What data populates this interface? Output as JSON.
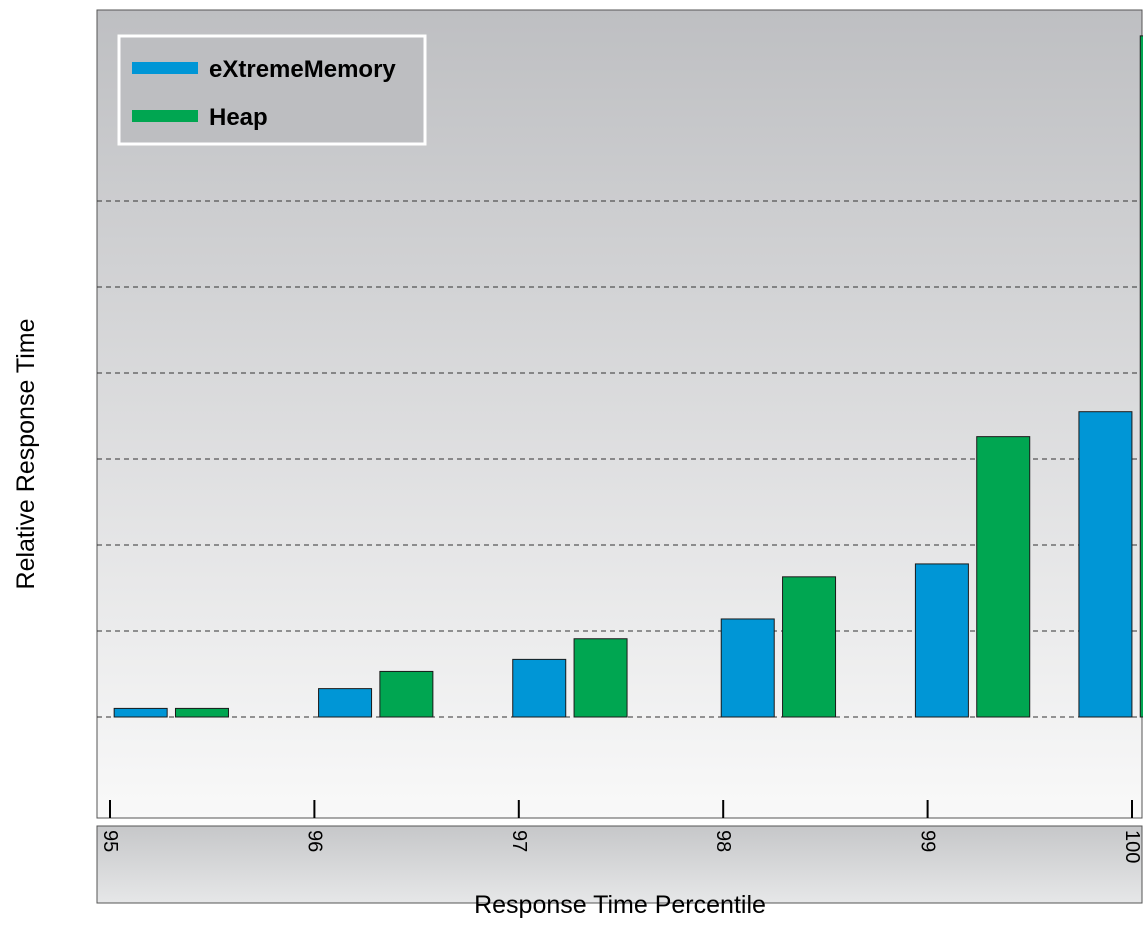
{
  "chart_data": {
    "type": "bar",
    "title": "",
    "xlabel": "Response Time Percentile",
    "ylabel": "Relative Response Time",
    "x_ticks": [
      "95",
      "96",
      "97",
      "98",
      "99",
      "100"
    ],
    "x_range": [
      95,
      100
    ],
    "ylim": [
      0,
      8
    ],
    "y_tick_labels_shown": false,
    "grid": "horizontal dashed",
    "legend_position": "top-left",
    "series": [
      {
        "name": "eXtremeMemory",
        "color": "#0096d6",
        "x": [
          95.15,
          96.15,
          97.1,
          98.12,
          99.07,
          99.87
        ],
        "values": [
          0.1,
          0.33,
          0.67,
          1.14,
          1.78,
          3.55
        ]
      },
      {
        "name": "Heap",
        "color": "#00a651",
        "x": [
          95.45,
          96.45,
          97.4,
          98.42,
          99.37,
          100.17
        ],
        "values": [
          0.1,
          0.53,
          0.91,
          1.63,
          3.26,
          7.92
        ]
      }
    ]
  }
}
